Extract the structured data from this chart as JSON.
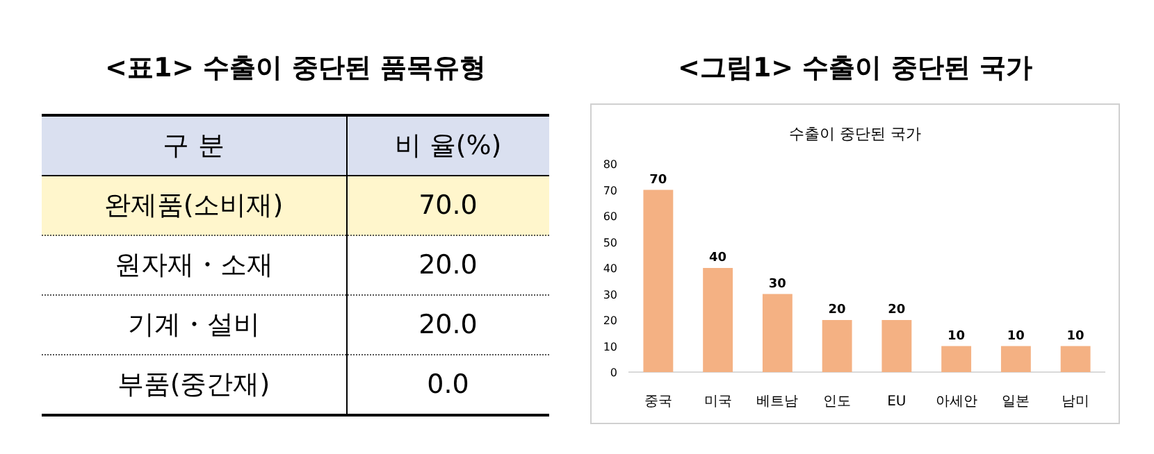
{
  "chart_data": [
    {
      "type": "other",
      "title": "<표1> 수출이 중단된 품목유형",
      "annotations": [
        "구 분",
        "비 율(%)",
        "완제품(소비재)",
        "70.0",
        "원자재・소재",
        "20.0",
        "기계・설비",
        "20.0",
        "부품(중간재)",
        "0.0"
      ]
    },
    {
      "type": "bar",
      "title": "<그림1> 수출이 중단된 국가",
      "subtitle": "수출이 중단된 국가",
      "categories": [
        "중국",
        "미국",
        "베트남",
        "인도",
        "EU",
        "아세안",
        "일본",
        "남미"
      ],
      "values": [
        70,
        40,
        30,
        20,
        20,
        10,
        10,
        10
      ],
      "color": "#f4b183",
      "ylim": [
        0,
        80
      ],
      "yticks": [
        0,
        10,
        20,
        30,
        40,
        50,
        60,
        70,
        80
      ],
      "data_labels": true
    }
  ]
}
